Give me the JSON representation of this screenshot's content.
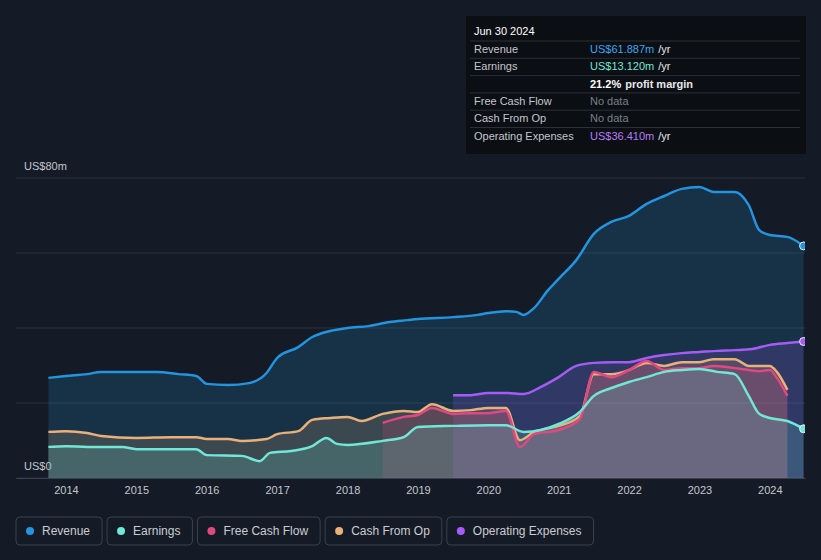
{
  "chart_data": {
    "type": "area",
    "xlim": [
      2013.29,
      2024.5
    ],
    "xticks": [
      2014,
      2015,
      2016,
      2017,
      2018,
      2019,
      2020,
      2021,
      2022,
      2023,
      2024
    ],
    "ylim": [
      0,
      80
    ],
    "yticks": [
      {
        "value": 0,
        "label": "US$0"
      },
      {
        "value": 20,
        "label": null
      },
      {
        "value": 40,
        "label": null
      },
      {
        "value": 60,
        "label": null
      },
      {
        "value": 80,
        "label": "US$80m"
      }
    ],
    "grid": true,
    "legend": "bottom-left",
    "series": [
      {
        "name": "Revenue",
        "color": "#2394df",
        "marker": "circle",
        "x": [
          2013.75,
          2014,
          2014.3,
          2014.5,
          2015,
          2015.3,
          2015.6,
          2015.85,
          2016,
          2016.3,
          2016.6,
          2016.85,
          2017,
          2017.3,
          2017.5,
          2017.75,
          2018,
          2018.3,
          2018.6,
          2018.85,
          2019,
          2019.5,
          2019.85,
          2020,
          2020.25,
          2020.4,
          2020.5,
          2020.65,
          2020.85,
          2021,
          2021.25,
          2021.5,
          2021.75,
          2022,
          2022.25,
          2022.5,
          2022.75,
          2023,
          2023.2,
          2023.5,
          2023.7,
          2023.85,
          2024,
          2024.25,
          2024.48
        ],
        "values": [
          26.7,
          27.2,
          27.7,
          28.3,
          28.3,
          28.3,
          27.7,
          27.2,
          25.1,
          24.8,
          25.3,
          28,
          32,
          34.9,
          37.6,
          39.2,
          40,
          40.5,
          41.6,
          42.1,
          42.4,
          42.9,
          43.5,
          44,
          44.5,
          44.3,
          43.5,
          45.3,
          50.1,
          53.1,
          58.1,
          65.1,
          68.3,
          69.9,
          73.1,
          75.2,
          77.1,
          77.6,
          76.3,
          76.3,
          72.8,
          66.1,
          64.8,
          64.3,
          61.887
        ]
      },
      {
        "name": "Earnings",
        "color": "#71e7d6",
        "marker": "circle",
        "x": [
          2013.75,
          2014,
          2014.3,
          2014.8,
          2015,
          2015.6,
          2015.85,
          2016,
          2016.5,
          2016.75,
          2016.9,
          2017.2,
          2017.5,
          2017.7,
          2017.85,
          2018,
          2018.5,
          2018.8,
          2019,
          2019.5,
          2020,
          2020.25,
          2020.5,
          2020.75,
          2021,
          2021.3,
          2021.5,
          2021.75,
          2022,
          2022.25,
          2022.5,
          2022.75,
          2023,
          2023.25,
          2023.5,
          2023.7,
          2023.85,
          2024,
          2024.25,
          2024.48
        ],
        "values": [
          8.3,
          8.5,
          8.3,
          8.3,
          7.7,
          7.7,
          7.7,
          6.1,
          5.9,
          4.5,
          6.7,
          7.2,
          8.5,
          10.7,
          9.1,
          8.8,
          9.9,
          10.9,
          13.6,
          13.9,
          14.1,
          14.1,
          12.3,
          12.8,
          14.4,
          17.6,
          21.9,
          24,
          25.6,
          26.9,
          28.3,
          28.8,
          29.1,
          28.3,
          27.7,
          21.9,
          17.1,
          16,
          15.2,
          13.12
        ]
      },
      {
        "name": "Free Cash Flow",
        "color": "#e04881",
        "x": [
          2018.5,
          2018.8,
          2019,
          2019.2,
          2019.5,
          2019.75,
          2020,
          2020.25,
          2020.45,
          2020.65,
          2021,
          2021.3,
          2021.5,
          2021.75,
          2022,
          2022.25,
          2022.5,
          2022.75,
          2023,
          2023.2,
          2023.5,
          2023.7,
          2023.85,
          2024,
          2024.1,
          2024.25
        ],
        "values": [
          14.7,
          16.3,
          16.8,
          18.7,
          17.1,
          17.3,
          17.3,
          17.9,
          8.3,
          11.7,
          12.8,
          15.7,
          28.3,
          26.9,
          28.8,
          31.2,
          28.8,
          29.3,
          29.3,
          29.9,
          29.3,
          28.8,
          28.5,
          28.8,
          26.7,
          21.9
        ]
      },
      {
        "name": "Cash From Op",
        "color": "#e9b17a",
        "x": [
          2013.75,
          2014,
          2014.3,
          2014.5,
          2015,
          2015.5,
          2015.85,
          2016,
          2016.3,
          2016.5,
          2016.85,
          2017,
          2017.3,
          2017.5,
          2017.75,
          2018,
          2018.2,
          2018.5,
          2018.8,
          2019,
          2019.2,
          2019.5,
          2019.75,
          2020,
          2020.25,
          2020.45,
          2020.65,
          2021,
          2021.3,
          2021.5,
          2021.75,
          2022,
          2022.25,
          2022.5,
          2022.75,
          2023,
          2023.2,
          2023.5,
          2023.7,
          2023.85,
          2024,
          2024.1,
          2024.25
        ],
        "values": [
          12.3,
          12.5,
          12,
          11.2,
          10.7,
          10.9,
          10.9,
          10.4,
          10.4,
          9.9,
          10.4,
          11.7,
          12.5,
          15.5,
          16,
          16.3,
          15.2,
          17.1,
          17.9,
          17.6,
          19.7,
          17.9,
          18.1,
          18.7,
          18.7,
          10.1,
          12.3,
          13.9,
          16.5,
          27.7,
          27.7,
          28.8,
          30.7,
          29.9,
          30.9,
          30.9,
          31.7,
          31.7,
          29.9,
          29.9,
          29.9,
          28.3,
          23.5
        ]
      },
      {
        "name": "Operating Expenses",
        "color": "#a75bf5",
        "marker": "circle",
        "x": [
          2019.5,
          2019.75,
          2020,
          2020.25,
          2020.5,
          2020.75,
          2021,
          2021.25,
          2021.5,
          2021.75,
          2022,
          2022.25,
          2022.5,
          2022.75,
          2023,
          2023.25,
          2023.5,
          2023.75,
          2024,
          2024.25,
          2024.48
        ],
        "values": [
          22.1,
          22.1,
          22.7,
          22.7,
          22.4,
          24.3,
          26.9,
          29.9,
          30.7,
          30.9,
          30.9,
          32,
          32.8,
          33.3,
          33.6,
          33.9,
          34.1,
          34.4,
          35.5,
          36,
          36.41
        ]
      }
    ],
    "tooltip": {
      "title": "Jun 30 2024",
      "rows": [
        {
          "label": "Revenue",
          "value": "US$61.887m",
          "unit": "/yr",
          "color": "#3ea6f0"
        },
        {
          "label": "Earnings",
          "value": "US$13.120m",
          "unit": "/yr",
          "color": "#71e7d6"
        },
        {
          "value": "21.2%",
          "unit": "profit margin",
          "color": "#ffffff"
        },
        {
          "label": "Free Cash Flow",
          "value": "No data",
          "color": "#7a808a"
        },
        {
          "label": "Cash From Op",
          "value": "No data",
          "color": "#7a808a"
        },
        {
          "label": "Operating Expenses",
          "value": "US$36.410m",
          "unit": "/yr",
          "color": "#b77cf7"
        }
      ]
    }
  }
}
